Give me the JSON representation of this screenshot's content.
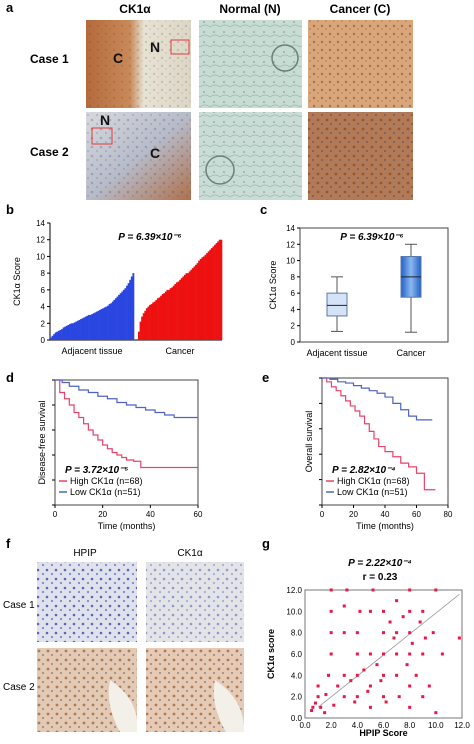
{
  "panel_a": {
    "label": "a",
    "columns": [
      "CK1α",
      "Normal (N)",
      "Cancer (C)"
    ],
    "rows": [
      "Case 1",
      "Case 2"
    ],
    "overview_labels": {
      "case1": [
        "C",
        "N"
      ],
      "case2": [
        "N",
        "C"
      ]
    }
  },
  "panel_f": {
    "label": "f",
    "columns": [
      "HPIP",
      "CK1α"
    ],
    "rows": [
      "Case 1",
      "Case 2"
    ]
  },
  "chart_data": [
    {
      "id": "b",
      "type": "bar",
      "panel_label": "b",
      "annotation": "P = 6.39×10⁻⁶",
      "ylabel": "CK1α Score",
      "ylim": [
        0,
        14
      ],
      "yticks": [
        0,
        2,
        4,
        6,
        8,
        10,
        12,
        14
      ],
      "series": [
        {
          "name": "Adjacent tissue",
          "color": "#2a46e0",
          "values": [
            0.3,
            0.5,
            0.7,
            0.9,
            1.0,
            1.1,
            1.2,
            1.3,
            1.5,
            1.6,
            1.7,
            1.8,
            1.9,
            2.0,
            2.0,
            2.1,
            2.2,
            2.3,
            2.4,
            2.5,
            2.6,
            2.7,
            2.8,
            2.9,
            3.0,
            3.0,
            3.1,
            3.2,
            3.3,
            3.4,
            3.5,
            3.6,
            3.7,
            3.8,
            3.9,
            4.0,
            4.1,
            4.3,
            4.4,
            4.6,
            4.8,
            5.0,
            5.2,
            5.4,
            5.6,
            5.8,
            6.0,
            6.2,
            6.5,
            6.8,
            7.2,
            7.6,
            8.0
          ]
        },
        {
          "name": "Cancer",
          "color": "#ee1111",
          "values": [
            1.0,
            2.2,
            2.8,
            3.2,
            3.5,
            3.8,
            4.0,
            4.2,
            4.3,
            4.5,
            4.6,
            4.8,
            5.0,
            5.1,
            5.3,
            5.5,
            5.6,
            5.8,
            6.0,
            6.0,
            6.2,
            6.3,
            6.5,
            6.7,
            6.9,
            7.0,
            7.2,
            7.4,
            7.6,
            7.8,
            8.0,
            8.0,
            8.2,
            8.4,
            8.6,
            8.8,
            9.0,
            9.2,
            9.5,
            9.7,
            9.9,
            10.0,
            10.2,
            10.4,
            10.6,
            10.8,
            11.0,
            11.2,
            11.4,
            11.6,
            11.8,
            12.0,
            12.0
          ]
        }
      ]
    },
    {
      "id": "c",
      "type": "box",
      "panel_label": "c",
      "annotation": "P = 6.39×10⁻⁶",
      "ylabel": "CK1α Score",
      "ylim": [
        0,
        14
      ],
      "yticks": [
        0,
        2,
        4,
        6,
        8,
        10,
        12,
        14
      ],
      "categories": [
        "Adjacent tissue",
        "Cancer"
      ],
      "boxes": [
        {
          "min": 1.3,
          "q1": 3.2,
          "median": 4.5,
          "q3": 6.0,
          "max": 8.0,
          "color": "#d5e3f6"
        },
        {
          "min": 1.2,
          "q1": 5.5,
          "median": 8.0,
          "q3": 10.5,
          "max": 12.0,
          "color": "#3a7fd8"
        }
      ]
    },
    {
      "id": "d",
      "type": "line",
      "panel_label": "d",
      "annotation": "P = 3.72×10⁻⁵",
      "ylabel": "Disease-free survival",
      "xlabel": "Time (months)",
      "xlim": [
        0,
        60
      ],
      "ylim": [
        0,
        1.0
      ],
      "xticks": [
        0,
        20,
        40,
        60
      ],
      "yticks": [
        0,
        0.2,
        0.4,
        0.6,
        0.8,
        1.0
      ],
      "series": [
        {
          "name": "High CK1α (n=68)",
          "color": "#e8436a",
          "x": [
            0,
            2,
            4,
            6,
            8,
            10,
            12,
            14,
            16,
            18,
            20,
            22,
            24,
            26,
            28,
            30,
            33,
            36,
            40,
            45,
            60
          ],
          "y": [
            1.0,
            0.9,
            0.85,
            0.8,
            0.74,
            0.7,
            0.65,
            0.6,
            0.56,
            0.52,
            0.48,
            0.45,
            0.42,
            0.4,
            0.38,
            0.36,
            0.35,
            0.3,
            0.3,
            0.3,
            0.3
          ]
        },
        {
          "name": "Low CK1α (n=51)",
          "color": "#4e62c9",
          "x": [
            0,
            3,
            6,
            10,
            14,
            18,
            22,
            26,
            30,
            34,
            38,
            42,
            46,
            50,
            60
          ],
          "y": [
            1.0,
            0.98,
            0.95,
            0.92,
            0.9,
            0.87,
            0.85,
            0.82,
            0.8,
            0.78,
            0.76,
            0.74,
            0.72,
            0.7,
            0.7
          ]
        }
      ]
    },
    {
      "id": "e",
      "type": "line",
      "panel_label": "e",
      "annotation": "P = 2.82×10⁻⁴",
      "ylabel": "Overall survival",
      "xlabel": "Time (months)",
      "xlim": [
        0,
        80
      ],
      "ylim": [
        0,
        1.0
      ],
      "xticks": [
        0,
        20,
        40,
        60,
        80
      ],
      "yticks": [
        0,
        0.2,
        0.4,
        0.6,
        0.8,
        1.0
      ],
      "series": [
        {
          "name": "High CK1α (n=68)",
          "color": "#e8436a",
          "x": [
            0,
            3,
            6,
            9,
            12,
            15,
            18,
            21,
            24,
            27,
            30,
            33,
            36,
            40,
            45,
            50,
            55,
            60,
            65,
            68,
            72
          ],
          "y": [
            1.0,
            0.97,
            0.93,
            0.9,
            0.86,
            0.82,
            0.78,
            0.74,
            0.7,
            0.64,
            0.58,
            0.52,
            0.46,
            0.42,
            0.38,
            0.33,
            0.3,
            0.25,
            0.12,
            0.12,
            0.12
          ]
        },
        {
          "name": "Low CK1α (n=51)",
          "color": "#4e62c9",
          "x": [
            0,
            5,
            10,
            15,
            20,
            25,
            30,
            35,
            40,
            45,
            50,
            55,
            60,
            65,
            70
          ],
          "y": [
            1.0,
            0.99,
            0.97,
            0.96,
            0.94,
            0.92,
            0.9,
            0.88,
            0.85,
            0.8,
            0.75,
            0.7,
            0.67,
            0.67,
            0.67
          ]
        }
      ]
    },
    {
      "id": "g",
      "type": "scatter",
      "panel_label": "g",
      "annotation": "P = 2.22×10⁻⁴",
      "annotation2": "r = 0.23",
      "ylabel": "CK1α score",
      "xlabel": "HPIP Score",
      "xlim": [
        0,
        12
      ],
      "ylim": [
        0,
        12
      ],
      "xtick_labels": [
        "0.0",
        "2.0",
        "4.0",
        "6.0",
        "8.0",
        "10.0",
        "12.0"
      ],
      "ytick_labels": [
        "0.0",
        "2.0",
        "4.0",
        "6.0",
        "8.0",
        "10.0",
        "12.0"
      ],
      "color": "#e8174a",
      "trend": [
        [
          1.0,
          1.0
        ],
        [
          11.8,
          11.6
        ]
      ],
      "points": [
        [
          0.5,
          0.7
        ],
        [
          0.6,
          1.0
        ],
        [
          0.8,
          1.4
        ],
        [
          1.0,
          2.0
        ],
        [
          1.0,
          3.0
        ],
        [
          1.2,
          1.0
        ],
        [
          1.5,
          0.5
        ],
        [
          1.6,
          2.2
        ],
        [
          1.8,
          4.0
        ],
        [
          2.0,
          6.0
        ],
        [
          2.0,
          8.0
        ],
        [
          2.0,
          10.0
        ],
        [
          2.0,
          12.0
        ],
        [
          2.2,
          1.2
        ],
        [
          2.5,
          3.0
        ],
        [
          3.0,
          2.0
        ],
        [
          3.0,
          4.0
        ],
        [
          3.0,
          8.0
        ],
        [
          3.0,
          10.5
        ],
        [
          3.2,
          12.0
        ],
        [
          3.5,
          3.5
        ],
        [
          3.8,
          1.5
        ],
        [
          4.0,
          2.0
        ],
        [
          4.0,
          4.0
        ],
        [
          4.0,
          6.0
        ],
        [
          4.0,
          8.0
        ],
        [
          4.2,
          10.0
        ],
        [
          4.5,
          4.5
        ],
        [
          4.8,
          2.5
        ],
        [
          5.0,
          1.0
        ],
        [
          5.0,
          3.0
        ],
        [
          5.0,
          6.0
        ],
        [
          5.0,
          10.0
        ],
        [
          5.2,
          12.0
        ],
        [
          5.5,
          5.0
        ],
        [
          5.8,
          3.5
        ],
        [
          6.0,
          2.0
        ],
        [
          6.0,
          4.0
        ],
        [
          6.0,
          6.0
        ],
        [
          6.0,
          8.0
        ],
        [
          6.0,
          10.0
        ],
        [
          6.2,
          1.5
        ],
        [
          6.5,
          9.0
        ],
        [
          6.8,
          7.5
        ],
        [
          7.0,
          4.0
        ],
        [
          7.0,
          6.0
        ],
        [
          7.0,
          8.0
        ],
        [
          7.0,
          11.0
        ],
        [
          7.2,
          2.0
        ],
        [
          7.5,
          9.5
        ],
        [
          7.8,
          5.0
        ],
        [
          8.0,
          1.0
        ],
        [
          8.0,
          3.0
        ],
        [
          8.0,
          6.0
        ],
        [
          8.0,
          8.0
        ],
        [
          8.0,
          10.0
        ],
        [
          8.0,
          12.0
        ],
        [
          8.2,
          7.0
        ],
        [
          8.5,
          4.0
        ],
        [
          8.8,
          9.0
        ],
        [
          9.0,
          2.0
        ],
        [
          9.0,
          6.0
        ],
        [
          9.0,
          10.0
        ],
        [
          9.2,
          7.5
        ],
        [
          9.5,
          3.0
        ],
        [
          9.8,
          8.0
        ],
        [
          10.0,
          0.5
        ],
        [
          10.0,
          12.0
        ],
        [
          10.5,
          6.0
        ],
        [
          11.8,
          7.5
        ]
      ]
    }
  ]
}
